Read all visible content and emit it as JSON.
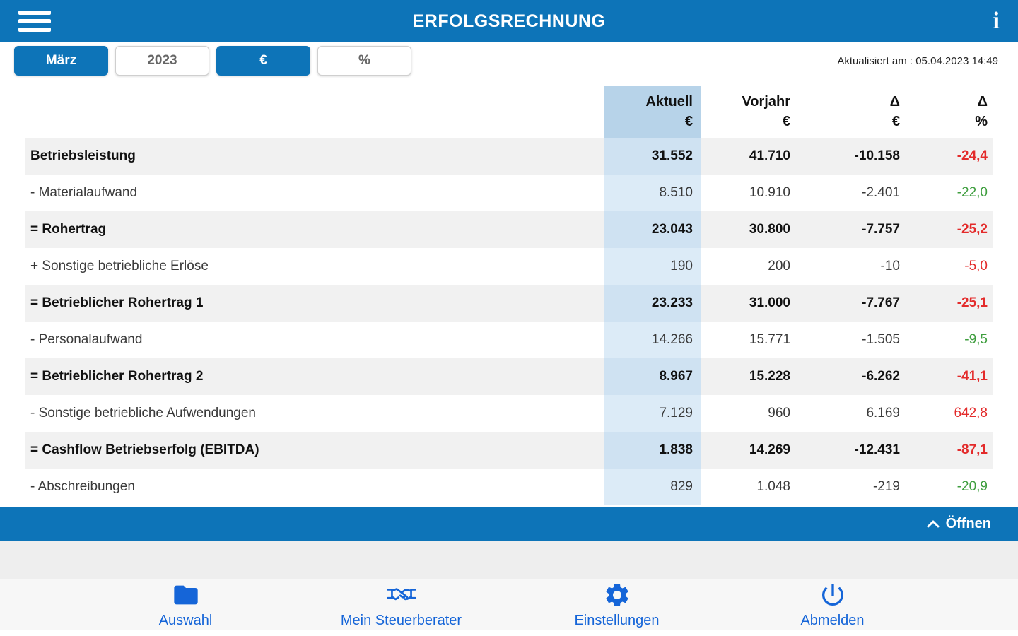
{
  "app": {
    "title": "ERFOLGSRECHNUNG"
  },
  "colors": {
    "primary": "#0d74b8",
    "nav_blue": "#1565d8",
    "negative": "#e32b2b",
    "positive": "#3f9e3f",
    "aktuell_header_bg": "#b7d3e9",
    "aktuell_cell_bg": "#dcebf7"
  },
  "icons": {
    "menu": "hamburger-icon",
    "info": "info-icon",
    "info_glyph": "i",
    "open_chevron": "chevron-up-icon",
    "nav": [
      "folder-icon",
      "handshake-icon",
      "gear-icon",
      "power-icon"
    ]
  },
  "toolbar": {
    "buttons": [
      {
        "label": "März",
        "active": true
      },
      {
        "label": "2023",
        "active": false
      },
      {
        "label": "€",
        "active": true
      },
      {
        "label": "%",
        "active": false
      }
    ],
    "updated": "Aktualisiert am : 05.04.2023 14:49"
  },
  "table": {
    "columns": [
      {
        "title": "Aktuell",
        "unit": "€"
      },
      {
        "title": "Vorjahr",
        "unit": "€"
      },
      {
        "title": "Δ",
        "unit": "€"
      },
      {
        "title": "Δ",
        "unit": "%"
      }
    ],
    "rows": [
      {
        "label": "Betriebsleistung",
        "bold": true,
        "aktuell": "31.552",
        "vorjahr": "41.710",
        "delta": "-10.158",
        "pct": "-24,4",
        "pct_color": "negative"
      },
      {
        "label": "- Materialaufwand",
        "bold": false,
        "aktuell": "8.510",
        "vorjahr": "10.910",
        "delta": "-2.401",
        "pct": "-22,0",
        "pct_color": "positive"
      },
      {
        "label": "= Rohertrag",
        "bold": true,
        "aktuell": "23.043",
        "vorjahr": "30.800",
        "delta": "-7.757",
        "pct": "-25,2",
        "pct_color": "negative"
      },
      {
        "label": "+ Sonstige betriebliche Erlöse",
        "bold": false,
        "aktuell": "190",
        "vorjahr": "200",
        "delta": "-10",
        "pct": "-5,0",
        "pct_color": "negative"
      },
      {
        "label": "= Betrieblicher Rohertrag 1",
        "bold": true,
        "aktuell": "23.233",
        "vorjahr": "31.000",
        "delta": "-7.767",
        "pct": "-25,1",
        "pct_color": "negative"
      },
      {
        "label": "- Personalaufwand",
        "bold": false,
        "aktuell": "14.266",
        "vorjahr": "15.771",
        "delta": "-1.505",
        "pct": "-9,5",
        "pct_color": "positive"
      },
      {
        "label": "= Betrieblicher Rohertrag 2",
        "bold": true,
        "aktuell": "8.967",
        "vorjahr": "15.228",
        "delta": "-6.262",
        "pct": "-41,1",
        "pct_color": "negative"
      },
      {
        "label": "- Sonstige betriebliche Aufwendungen",
        "bold": false,
        "aktuell": "7.129",
        "vorjahr": "960",
        "delta": "6.169",
        "pct": "642,8",
        "pct_color": "negative"
      },
      {
        "label": "= Cashflow Betriebserfolg (EBITDA)",
        "bold": true,
        "aktuell": "1.838",
        "vorjahr": "14.269",
        "delta": "-12.431",
        "pct": "-87,1",
        "pct_color": "negative"
      },
      {
        "label": "- Abschreibungen",
        "bold": false,
        "aktuell": "829",
        "vorjahr": "1.048",
        "delta": "-219",
        "pct": "-20,9",
        "pct_color": "positive"
      }
    ]
  },
  "open_bar": {
    "label": "Öffnen"
  },
  "bottom_nav": {
    "items": [
      {
        "label": "Auswahl"
      },
      {
        "label": "Mein Steuerberater"
      },
      {
        "label": "Einstellungen"
      },
      {
        "label": "Abmelden"
      }
    ]
  }
}
